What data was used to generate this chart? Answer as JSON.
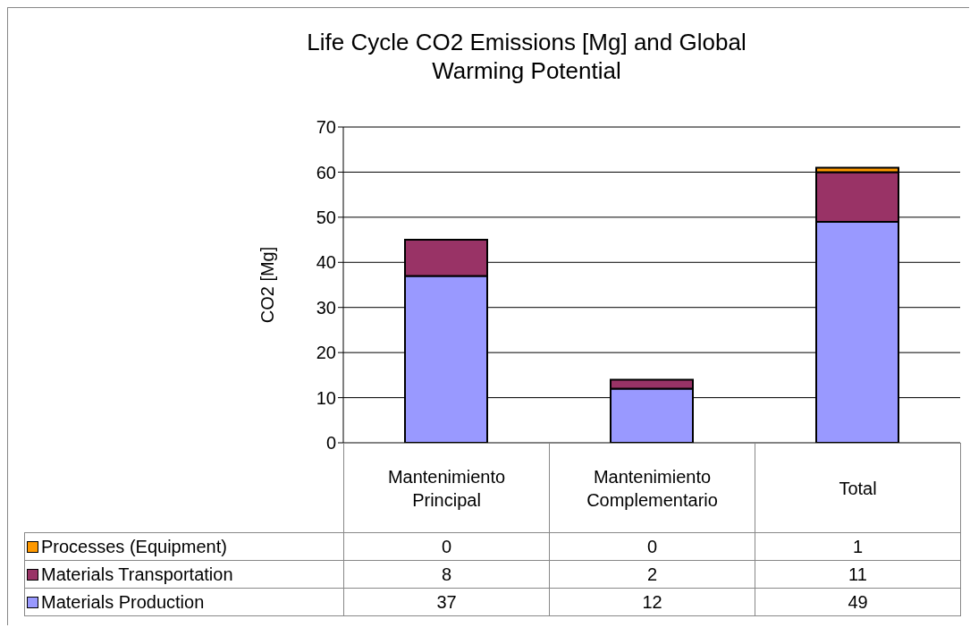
{
  "chart_data": {
    "type": "bar",
    "title": "Life Cycle CO2 Emissions [Mg] and Global Warming Potential",
    "ylabel": "CO2 [Mg]",
    "categories": [
      "Mantenimiento Principal",
      "Mantenimiento Complementario",
      "Total"
    ],
    "series": [
      {
        "name": "Materials Production",
        "color": "#9999ff",
        "values": [
          37,
          12,
          49
        ]
      },
      {
        "name": "Materials Transportation",
        "color": "#993366",
        "values": [
          8,
          2,
          11
        ]
      },
      {
        "name": "Processes (Equipment)",
        "color": "#ff9900",
        "values": [
          0,
          0,
          1
        ]
      }
    ],
    "stacked": true,
    "ylim": [
      0,
      70
    ],
    "yticks": [
      0,
      10,
      20,
      30,
      40,
      50,
      60,
      70
    ],
    "grid": "y",
    "legend": "bottom left",
    "data_labels": true
  }
}
